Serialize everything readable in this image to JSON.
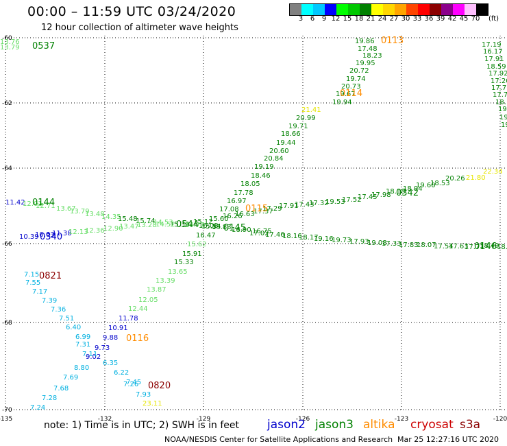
{
  "header": {
    "title": "00:00 – 11:59 UTC 03/24/2020",
    "subtitle": "12 hour collection of altimeter wave heights"
  },
  "colorbar": {
    "unit": "(ft)",
    "labels": [
      "3",
      "6",
      "9",
      "12",
      "15",
      "18",
      "21",
      "24",
      "27",
      "30",
      "33",
      "36",
      "39",
      "42",
      "45",
      "70"
    ],
    "colors": [
      "#808080",
      "#00ffff",
      "#00c8ff",
      "#0000ff",
      "#00ff00",
      "#00c800",
      "#008000",
      "#ffff00",
      "#ffd700",
      "#ffa500",
      "#ff4500",
      "#ff0000",
      "#8b0000",
      "#8b008b",
      "#ff00ff",
      "#ffc0ff",
      "#000000"
    ]
  },
  "axes": {
    "lon_labels": [
      "-135",
      "-132",
      "-129",
      "-126",
      "-123",
      "-120"
    ],
    "lat_labels": [
      "-60",
      "-62",
      "-64",
      "-66",
      "-68",
      "-70"
    ]
  },
  "footer": {
    "note": "note:  1) Time is in UTC;  2) SWH is in feet",
    "satellites": [
      {
        "name": "jason2",
        "color": "#0000cc"
      },
      {
        "name": "jason3",
        "color": "#008000"
      },
      {
        "name": "altika",
        "color": "#ff8c00"
      },
      {
        "name": "cryosat",
        "color": "#cc0000"
      },
      {
        "name": "s3a",
        "color": "#8b0000"
      }
    ],
    "credit": "NOAA/NESDIS Center for Satellite Applications and Research",
    "timestamp": "Mar 25 12:27:16 UTC 2020"
  },
  "chart_data": {
    "type": "scatter",
    "time_labels": [
      {
        "text": "0537",
        "color": "#008000"
      },
      {
        "text": "0113",
        "color": "#ff8c00"
      },
      {
        "text": "0114",
        "color": "#ff8c00"
      },
      {
        "text": "0144",
        "color": "#008000"
      },
      {
        "text": "0115",
        "color": "#ff8c00"
      },
      {
        "text": "0342",
        "color": "#008000"
      },
      {
        "text": "0146",
        "color": "#008000"
      },
      {
        "text": "0544",
        "color": "#008000"
      },
      {
        "text": "0145",
        "color": "#008000"
      },
      {
        "text": "0340",
        "color": "#0000cc"
      },
      {
        "text": "0821",
        "color": "#8b0000"
      },
      {
        "text": "0116",
        "color": "#ff8c00"
      },
      {
        "text": "0820",
        "color": "#8b0000"
      }
    ],
    "wave_heights": [
      {
        "text": "13.76",
        "color": "#66dd66"
      },
      {
        "text": "13.79",
        "color": "#66dd66"
      },
      {
        "text": "19.86",
        "color": "#008000"
      },
      {
        "text": "17.48",
        "color": "#008000"
      },
      {
        "text": "18.23",
        "color": "#008000"
      },
      {
        "text": "19.95",
        "color": "#008000"
      },
      {
        "text": "20.72",
        "color": "#008000"
      },
      {
        "text": "19.74",
        "color": "#008000"
      },
      {
        "text": "20.73",
        "color": "#008000"
      },
      {
        "text": "19.67",
        "color": "#008000"
      },
      {
        "text": "19.94",
        "color": "#008000"
      },
      {
        "text": "21.41",
        "color": "#e6e600"
      },
      {
        "text": "20.99",
        "color": "#008000"
      },
      {
        "text": "19.71",
        "color": "#008000"
      },
      {
        "text": "18.66",
        "color": "#008000"
      },
      {
        "text": "19.44",
        "color": "#008000"
      },
      {
        "text": "20.60",
        "color": "#008000"
      },
      {
        "text": "20.84",
        "color": "#008000"
      },
      {
        "text": "19.19",
        "color": "#008000"
      },
      {
        "text": "18.46",
        "color": "#008000"
      },
      {
        "text": "18.05",
        "color": "#008000"
      },
      {
        "text": "17.78",
        "color": "#008000"
      },
      {
        "text": "16.97",
        "color": "#008000"
      },
      {
        "text": "17.08",
        "color": "#008000"
      },
      {
        "text": "17.19",
        "color": "#008000"
      },
      {
        "text": "16.17",
        "color": "#008000"
      },
      {
        "text": "17.91",
        "color": "#008000"
      },
      {
        "text": "18.59",
        "color": "#008000"
      },
      {
        "text": "17.92",
        "color": "#008000"
      },
      {
        "text": "17.20",
        "color": "#008000"
      },
      {
        "text": "17.7",
        "color": "#008000"
      },
      {
        "text": "17.7",
        "color": "#008000"
      },
      {
        "text": "18.",
        "color": "#008000"
      },
      {
        "text": "19",
        "color": "#008000"
      },
      {
        "text": "19",
        "color": "#008000"
      },
      {
        "text": "19",
        "color": "#008000"
      },
      {
        "text": "22.34",
        "color": "#e6e600"
      },
      {
        "text": "21.80",
        "color": "#e6e600"
      },
      {
        "text": "20.26",
        "color": "#008000"
      },
      {
        "text": "18.53",
        "color": "#008000"
      },
      {
        "text": "19.60",
        "color": "#008000"
      },
      {
        "text": "18.94",
        "color": "#008000"
      },
      {
        "text": "18.18",
        "color": "#008000"
      },
      {
        "text": "17.98",
        "color": "#008000"
      },
      {
        "text": "17.45",
        "color": "#008000"
      },
      {
        "text": "17.52",
        "color": "#008000"
      },
      {
        "text": "19.53",
        "color": "#008000"
      },
      {
        "text": "17.32",
        "color": "#008000"
      },
      {
        "text": "17.43",
        "color": "#008000"
      },
      {
        "text": "17.91",
        "color": "#008000"
      },
      {
        "text": "17.29",
        "color": "#008000"
      },
      {
        "text": "17.37",
        "color": "#008000"
      },
      {
        "text": "16.63",
        "color": "#008000"
      },
      {
        "text": "16.26",
        "color": "#008000"
      },
      {
        "text": "15.60",
        "color": "#008000"
      },
      {
        "text": "15.12",
        "color": "#008000"
      },
      {
        "text": "11.42",
        "color": "#0000cc"
      },
      {
        "text": "12.01",
        "color": "#66dd66"
      },
      {
        "text": "12.71",
        "color": "#66dd66"
      },
      {
        "text": "13.67",
        "color": "#66dd66"
      },
      {
        "text": "13.79",
        "color": "#66dd66"
      },
      {
        "text": "13.48",
        "color": "#66dd66"
      },
      {
        "text": "14.35",
        "color": "#66dd66"
      },
      {
        "text": "15.48",
        "color": "#008000"
      },
      {
        "text": "15.74",
        "color": "#008000"
      },
      {
        "text": "14.53",
        "color": "#66dd66"
      },
      {
        "text": "15.33",
        "color": "#008000"
      },
      {
        "text": "14.77",
        "color": "#66dd66"
      },
      {
        "text": "15.54",
        "color": "#008000"
      },
      {
        "text": "10.39",
        "color": "#0000cc"
      },
      {
        "text": "10.63",
        "color": "#0000cc"
      },
      {
        "text": "11.38",
        "color": "#0000cc"
      },
      {
        "text": "12.13",
        "color": "#66dd66"
      },
      {
        "text": "12.36",
        "color": "#66dd66"
      },
      {
        "text": "12.90",
        "color": "#66dd66"
      },
      {
        "text": "13.47",
        "color": "#66dd66"
      },
      {
        "text": "13.28",
        "color": "#66dd66"
      },
      {
        "text": "14.52",
        "color": "#66dd66"
      },
      {
        "text": "15.83",
        "color": "#008000"
      },
      {
        "text": "16.08",
        "color": "#008000"
      },
      {
        "text": "16.75",
        "color": "#008000"
      },
      {
        "text": "16.90",
        "color": "#008000"
      },
      {
        "text": "17.02",
        "color": "#008000"
      },
      {
        "text": "17.46",
        "color": "#008000"
      },
      {
        "text": "18.16",
        "color": "#008000"
      },
      {
        "text": "18.17",
        "color": "#008000"
      },
      {
        "text": "19.16",
        "color": "#008000"
      },
      {
        "text": "19.73",
        "color": "#008000"
      },
      {
        "text": "17.93",
        "color": "#008000"
      },
      {
        "text": "19.08",
        "color": "#008000"
      },
      {
        "text": "17.33",
        "color": "#008000"
      },
      {
        "text": "17.83",
        "color": "#008000"
      },
      {
        "text": "18.07",
        "color": "#008000"
      },
      {
        "text": "17.54",
        "color": "#008000"
      },
      {
        "text": "17.63",
        "color": "#008000"
      },
      {
        "text": "17.71",
        "color": "#008000"
      },
      {
        "text": "18.49",
        "color": "#008000"
      },
      {
        "text": "18.46",
        "color": "#008000"
      },
      {
        "text": "16.47",
        "color": "#008000"
      },
      {
        "text": "15.62",
        "color": "#66dd66"
      },
      {
        "text": "15.91",
        "color": "#008000"
      },
      {
        "text": "15.33",
        "color": "#008000"
      },
      {
        "text": "13.65",
        "color": "#66dd66"
      },
      {
        "text": "13.39",
        "color": "#66dd66"
      },
      {
        "text": "13.87",
        "color": "#66dd66"
      },
      {
        "text": "12.05",
        "color": "#66dd66"
      },
      {
        "text": "12.44",
        "color": "#66dd66"
      },
      {
        "text": "11.78",
        "color": "#0000cc"
      },
      {
        "text": "10.91",
        "color": "#0000cc"
      },
      {
        "text": "9.88",
        "color": "#0000cc"
      },
      {
        "text": "9.73",
        "color": "#0000cc"
      },
      {
        "text": "9.02",
        "color": "#0000cc"
      },
      {
        "text": "7.15",
        "color": "#00b0e0"
      },
      {
        "text": "7.55",
        "color": "#00b0e0"
      },
      {
        "text": "7.17",
        "color": "#00b0e0"
      },
      {
        "text": "7.39",
        "color": "#00b0e0"
      },
      {
        "text": "7.36",
        "color": "#00b0e0"
      },
      {
        "text": "7.51",
        "color": "#00b0e0"
      },
      {
        "text": "6.40",
        "color": "#00b0e0"
      },
      {
        "text": "6.99",
        "color": "#00b0e0"
      },
      {
        "text": "7.31",
        "color": "#00b0e0"
      },
      {
        "text": "7.11",
        "color": "#00b0e0"
      },
      {
        "text": "6.35",
        "color": "#00b0e0"
      },
      {
        "text": "8.80",
        "color": "#00b0e0"
      },
      {
        "text": "6.22",
        "color": "#00b0e0"
      },
      {
        "text": "7.69",
        "color": "#00b0e0"
      },
      {
        "text": "7.45",
        "color": "#00b0e0"
      },
      {
        "text": "7.26",
        "color": "#00b0e0"
      },
      {
        "text": "7.68",
        "color": "#00b0e0"
      },
      {
        "text": "7.93",
        "color": "#00b0e0"
      },
      {
        "text": "7.28",
        "color": "#00b0e0"
      },
      {
        "text": "23.11",
        "color": "#e6e600"
      },
      {
        "text": "7.24",
        "color": "#00b0e0"
      }
    ]
  }
}
